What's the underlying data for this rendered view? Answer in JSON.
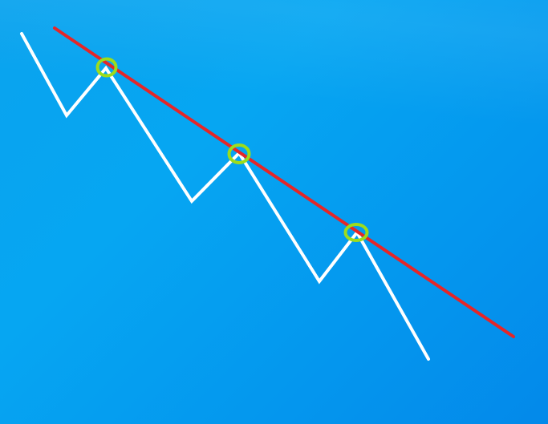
{
  "diagram": {
    "kind": "descending trendline touching lower highs",
    "colors": {
      "background_light": "#0aa8f2",
      "background_dark": "#0388e8",
      "price_line": "#ffffff",
      "trendline": "#e52628",
      "touch_marker": "#9ddc1c"
    },
    "price_path_points": 8,
    "touch_points": 3
  }
}
